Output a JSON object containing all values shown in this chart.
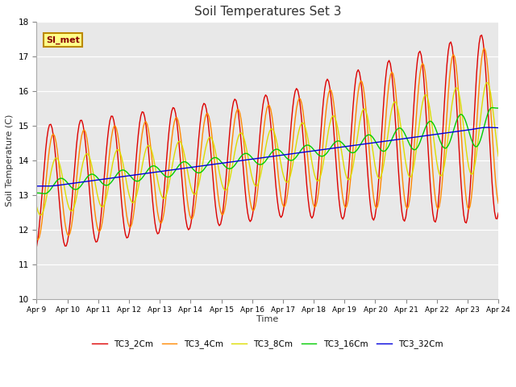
{
  "title": "Soil Temperatures Set 3",
  "xlabel": "Time",
  "ylabel": "Soil Temperature (C)",
  "ylim": [
    10.0,
    18.0
  ],
  "yticks": [
    10.0,
    11.0,
    12.0,
    13.0,
    14.0,
    15.0,
    16.0,
    17.0,
    18.0
  ],
  "xtick_labels": [
    "Apr 9",
    "Apr 10",
    "Apr 11",
    "Apr 12",
    "Apr 13",
    "Apr 14",
    "Apr 15",
    "Apr 16",
    "Apr 17",
    "Apr 18",
    "Apr 19",
    "Apr 20",
    "Apr 21",
    "Apr 22",
    "Apr 23",
    "Apr 24"
  ],
  "series_colors": [
    "#dd0000",
    "#ff8800",
    "#dddd00",
    "#00cc00",
    "#0000dd"
  ],
  "series_names": [
    "TC3_2Cm",
    "TC3_4Cm",
    "TC3_8Cm",
    "TC3_16Cm",
    "TC3_32Cm"
  ],
  "plot_bg_color": "#e8e8e8",
  "fig_bg_color": "#ffffff",
  "annotation_text": "SI_met",
  "annotation_bg": "#ffff88",
  "annotation_border": "#bb8800",
  "annotation_text_color": "#880000"
}
